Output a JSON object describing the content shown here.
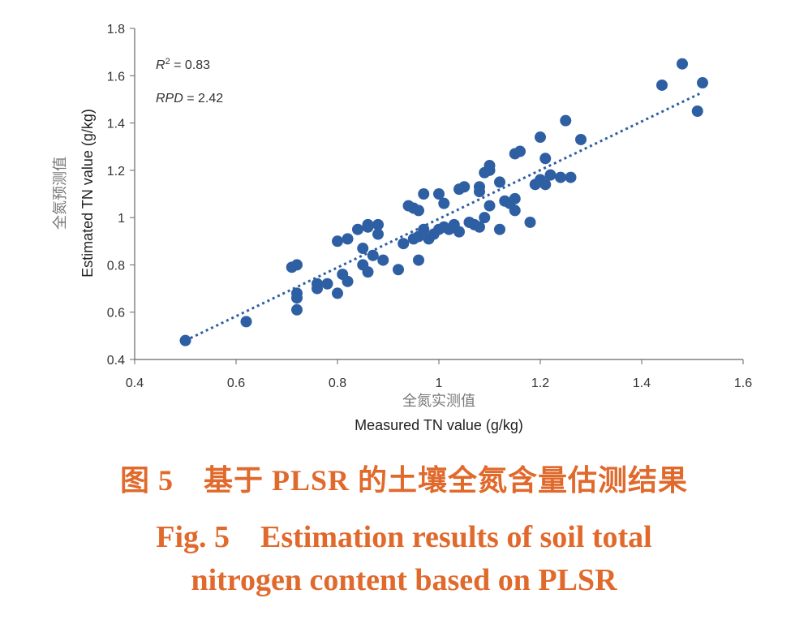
{
  "chart_data": {
    "type": "scatter",
    "xlabel_cn": "全氮实测值",
    "xlabel": "Measured TN value (g/kg)",
    "ylabel_cn": "全氮预测值",
    "ylabel": "Estimated TN value (g/kg)",
    "xlim": [
      0.4,
      1.6
    ],
    "ylim": [
      0.4,
      1.8
    ],
    "xticks": [
      "0.4",
      "0.6",
      "0.8",
      "1",
      "1.2",
      "1.4",
      "1.6"
    ],
    "yticks": [
      "0.4",
      "0.6",
      "0.8",
      "1",
      "1.2",
      "1.4",
      "1.6",
      "1.8"
    ],
    "annotations": {
      "r2_label": "R",
      "r2_sup": "2",
      "r2_value": " = 0.83",
      "rpd_label": "RPD",
      "rpd_value": " = 2.42"
    },
    "trendline": {
      "x1": 0.5,
      "y1": 0.48,
      "x2": 1.52,
      "y2": 1.53
    },
    "colors": {
      "points": "#2e5fa3",
      "trendline": "#2e5fa3"
    },
    "grid": false,
    "points": [
      [
        0.5,
        0.48
      ],
      [
        0.62,
        0.56
      ],
      [
        0.71,
        0.79
      ],
      [
        0.72,
        0.8
      ],
      [
        0.72,
        0.68
      ],
      [
        0.72,
        0.66
      ],
      [
        0.72,
        0.61
      ],
      [
        0.76,
        0.7
      ],
      [
        0.76,
        0.72
      ],
      [
        0.78,
        0.72
      ],
      [
        0.8,
        0.68
      ],
      [
        0.8,
        0.9
      ],
      [
        0.81,
        0.76
      ],
      [
        0.82,
        0.73
      ],
      [
        0.82,
        0.91
      ],
      [
        0.84,
        0.95
      ],
      [
        0.85,
        0.87
      ],
      [
        0.85,
        0.8
      ],
      [
        0.86,
        0.77
      ],
      [
        0.86,
        0.96
      ],
      [
        0.86,
        0.97
      ],
      [
        0.87,
        0.84
      ],
      [
        0.88,
        0.97
      ],
      [
        0.88,
        0.93
      ],
      [
        0.89,
        0.82
      ],
      [
        0.92,
        0.78
      ],
      [
        0.93,
        0.89
      ],
      [
        0.94,
        1.05
      ],
      [
        0.95,
        0.91
      ],
      [
        0.95,
        1.04
      ],
      [
        0.96,
        1.03
      ],
      [
        0.96,
        0.92
      ],
      [
        0.96,
        0.82
      ],
      [
        0.97,
        1.1
      ],
      [
        0.97,
        0.95
      ],
      [
        0.98,
        0.91
      ],
      [
        0.99,
        0.93
      ],
      [
        1.0,
        0.95
      ],
      [
        1.0,
        1.1
      ],
      [
        1.01,
        1.06
      ],
      [
        1.01,
        0.96
      ],
      [
        1.02,
        0.95
      ],
      [
        1.03,
        0.97
      ],
      [
        1.04,
        0.94
      ],
      [
        1.04,
        1.12
      ],
      [
        1.05,
        1.13
      ],
      [
        1.06,
        0.98
      ],
      [
        1.07,
        0.97
      ],
      [
        1.08,
        1.13
      ],
      [
        1.08,
        1.11
      ],
      [
        1.08,
        0.96
      ],
      [
        1.09,
        1.19
      ],
      [
        1.09,
        1.0
      ],
      [
        1.1,
        1.22
      ],
      [
        1.1,
        1.05
      ],
      [
        1.1,
        1.2
      ],
      [
        1.12,
        1.15
      ],
      [
        1.12,
        0.95
      ],
      [
        1.13,
        1.07
      ],
      [
        1.14,
        1.06
      ],
      [
        1.15,
        1.27
      ],
      [
        1.15,
        1.08
      ],
      [
        1.15,
        1.03
      ],
      [
        1.16,
        1.28
      ],
      [
        1.18,
        0.98
      ],
      [
        1.19,
        1.14
      ],
      [
        1.2,
        1.34
      ],
      [
        1.2,
        1.16
      ],
      [
        1.21,
        1.25
      ],
      [
        1.21,
        1.14
      ],
      [
        1.22,
        1.18
      ],
      [
        1.24,
        1.17
      ],
      [
        1.25,
        1.41
      ],
      [
        1.26,
        1.17
      ],
      [
        1.28,
        1.33
      ],
      [
        1.44,
        1.56
      ],
      [
        1.48,
        1.65
      ],
      [
        1.51,
        1.45
      ],
      [
        1.52,
        1.57
      ]
    ]
  },
  "caption": {
    "cn": "图 5　基于 PLSR 的土壤全氮含量估测结果",
    "en_line1": "Fig. 5　Estimation results of soil total",
    "en_line2": "nitrogen content based on PLSR"
  }
}
